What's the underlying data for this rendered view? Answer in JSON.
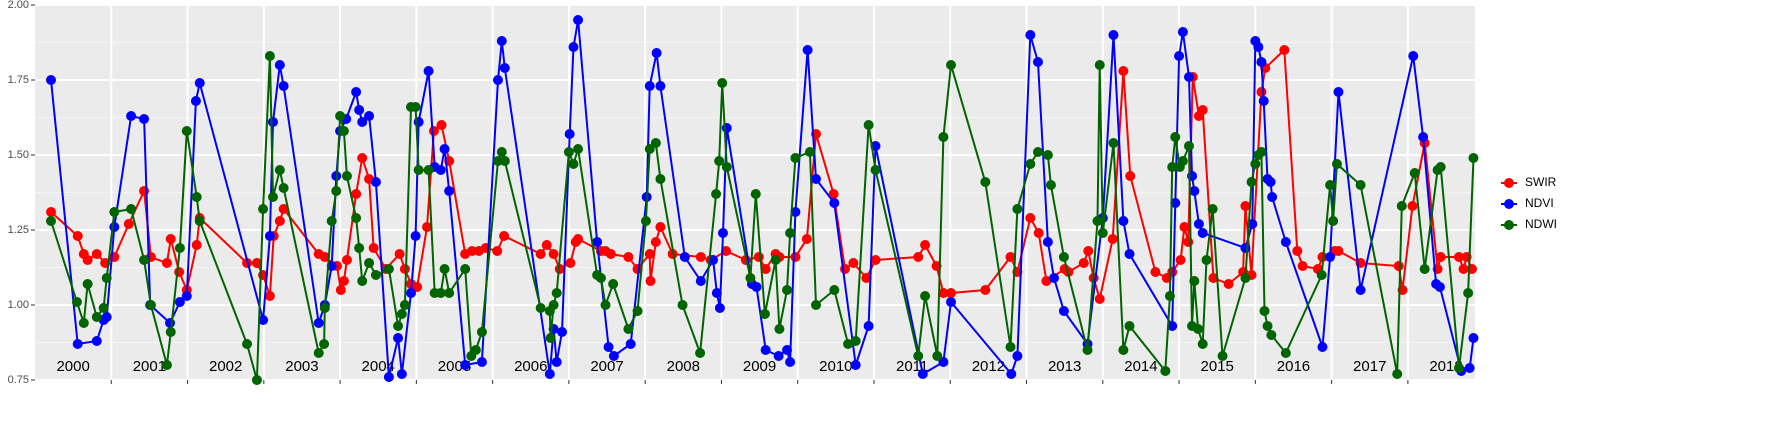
{
  "chart_data": {
    "type": "line",
    "xlim": [
      2000,
      2018.88
    ],
    "xticks": [
      2001,
      2002,
      2003,
      2004,
      2005,
      2006,
      2007,
      2008,
      2009,
      2010,
      2011,
      2012,
      2013,
      2014,
      2015,
      2016,
      2017,
      2018
    ],
    "ylim": [
      0.75,
      2.0
    ],
    "yticks": [
      0.75,
      {
        "value": 1.0,
        "label": "1.00"
      },
      1.25,
      {
        "value": 1.5,
        "label": "1.50"
      },
      1.75,
      {
        "value": 2.0,
        "label": "2.00"
      }
    ],
    "grid": true,
    "legend": "right",
    "year_labels": {
      "labels": [
        "2000",
        "2001",
        "2002",
        "2003",
        "2004",
        "2005",
        "2006",
        "2007",
        "2008",
        "2009",
        "2010",
        "2011",
        "2012",
        "2013",
        "2014",
        "2015",
        "2016",
        "2017",
        "2018"
      ],
      "x": [
        2000.5,
        2001.5,
        2002.5,
        2003.5,
        2004.5,
        2005.5,
        2006.5,
        2007.5,
        2008.5,
        2009.5,
        2010.5,
        2011.5,
        2012.5,
        2013.5,
        2014.5,
        2015.5,
        2016.5,
        2017.5,
        2018.5
      ]
    },
    "series": [
      {
        "name": "SWIR",
        "color": "#ff0000",
        "x": [
          2000.21,
          2000.56,
          2000.64,
          2000.69,
          2000.81,
          2000.92,
          2001.04,
          2001.23,
          2001.43,
          2001.52,
          2001.73,
          2001.78,
          2001.89,
          2001.99,
          2002.12,
          2002.16,
          2002.78,
          2002.91,
          2002.99,
          2003.08,
          2003.13,
          2003.21,
          2003.26,
          2003.72,
          2003.8,
          2003.96,
          2004.01,
          2004.05,
          2004.09,
          2004.21,
          2004.29,
          2004.38,
          2004.44,
          2004.6,
          2004.78,
          2004.85,
          2004.93,
          2005.01,
          2005.14,
          2005.23,
          2005.33,
          2005.43,
          2005.64,
          2005.73,
          2005.82,
          2005.91,
          2006.06,
          2006.15,
          2006.63,
          2006.71,
          2006.8,
          2006.88,
          2007.02,
          2007.09,
          2007.12,
          2007.42,
          2007.48,
          2007.55,
          2007.78,
          2007.9,
          2008.06,
          2008.07,
          2008.14,
          2008.2,
          2008.36,
          2008.73,
          2008.86,
          2009.06,
          2009.32,
          2009.49,
          2009.58,
          2009.71,
          2009.76,
          2009.97,
          2010.12,
          2010.24,
          2010.47,
          2010.62,
          2010.73,
          2010.9,
          2011.02,
          2011.58,
          2011.67,
          2011.82,
          2011.91,
          2012.01,
          2012.46,
          2012.79,
          2012.88,
          2013.05,
          2013.16,
          2013.26,
          2013.5,
          2013.55,
          2013.75,
          2013.81,
          2013.88,
          2013.96,
          2014.13,
          2014.27,
          2014.36,
          2014.69,
          2014.84,
          2014.91,
          2015.02,
          2015.07,
          2015.12,
          2015.18,
          2015.26,
          2015.31,
          2015.45,
          2015.65,
          2015.84,
          2015.87,
          2015.95,
          2016.08,
          2016.13,
          2016.38,
          2016.55,
          2016.62,
          2016.82,
          2016.88,
          2017.04,
          2017.09,
          2017.38,
          2017.88,
          2017.93,
          2018.06,
          2018.22,
          2018.39,
          2018.43,
          2018.67,
          2018.73,
          2018.77,
          2018.84
        ],
        "values": [
          1.31,
          1.23,
          1.17,
          1.15,
          1.17,
          1.14,
          1.16,
          1.27,
          1.38,
          1.16,
          1.14,
          1.22,
          1.11,
          1.05,
          1.2,
          1.29,
          1.14,
          1.14,
          1.1,
          1.03,
          1.23,
          1.28,
          1.32,
          1.17,
          1.16,
          1.13,
          1.05,
          1.08,
          1.15,
          1.37,
          1.49,
          1.42,
          1.19,
          1.12,
          1.17,
          1.12,
          1.07,
          1.06,
          1.26,
          1.58,
          1.6,
          1.48,
          1.17,
          1.18,
          1.18,
          1.19,
          1.18,
          1.23,
          1.17,
          1.2,
          1.17,
          1.12,
          1.14,
          1.21,
          1.22,
          1.18,
          1.18,
          1.17,
          1.16,
          1.12,
          1.17,
          1.08,
          1.21,
          1.26,
          1.17,
          1.16,
          1.15,
          1.18,
          1.15,
          1.16,
          1.12,
          1.17,
          1.16,
          1.16,
          1.22,
          1.57,
          1.37,
          1.12,
          1.14,
          1.09,
          1.15,
          1.16,
          1.2,
          1.13,
          1.04,
          1.04,
          1.05,
          1.16,
          1.11,
          1.29,
          1.24,
          1.08,
          1.12,
          1.11,
          1.14,
          1.18,
          1.09,
          1.02,
          1.22,
          1.78,
          1.43,
          1.11,
          1.09,
          1.11,
          1.15,
          1.26,
          1.21,
          1.76,
          1.63,
          1.65,
          1.09,
          1.07,
          1.11,
          1.33,
          1.1,
          1.71,
          1.79,
          1.85,
          1.18,
          1.13,
          1.12,
          1.16,
          1.18,
          1.18,
          1.14,
          1.13,
          1.05,
          1.33,
          1.54,
          1.12,
          1.16,
          1.16,
          1.12,
          1.16,
          1.12
        ]
      },
      {
        "name": "NDVI",
        "color": "#0000ff",
        "x": [
          2000.21,
          2000.56,
          2000.81,
          2000.9,
          2000.94,
          2001.04,
          2001.26,
          2001.43,
          2001.51,
          2001.77,
          2001.9,
          2001.99,
          2002.11,
          2002.16,
          2002.99,
          2003.08,
          2003.12,
          2003.21,
          2003.26,
          2003.72,
          2003.8,
          2003.89,
          2003.95,
          2004.0,
          2004.08,
          2004.21,
          2004.25,
          2004.29,
          2004.38,
          2004.47,
          2004.64,
          2004.76,
          2004.81,
          2004.93,
          2004.99,
          2005.03,
          2005.16,
          2005.24,
          2005.32,
          2005.37,
          2005.43,
          2005.64,
          2005.86,
          2006.07,
          2006.12,
          2006.16,
          2006.75,
          2006.8,
          2006.84,
          2006.91,
          2007.01,
          2007.06,
          2007.12,
          2007.37,
          2007.52,
          2007.59,
          2007.81,
          2008.02,
          2008.06,
          2008.15,
          2008.2,
          2008.52,
          2008.73,
          2008.89,
          2008.94,
          2008.98,
          2009.02,
          2009.07,
          2009.4,
          2009.46,
          2009.58,
          2009.75,
          2009.86,
          2009.9,
          2009.97,
          2010.13,
          2010.24,
          2010.48,
          2010.76,
          2010.93,
          2011.02,
          2011.64,
          2011.91,
          2012.01,
          2012.8,
          2012.88,
          2013.05,
          2013.15,
          2013.28,
          2013.36,
          2013.49,
          2013.8,
          2014.0,
          2014.14,
          2014.27,
          2014.35,
          2014.91,
          2014.95,
          2015.0,
          2015.05,
          2015.13,
          2015.17,
          2015.2,
          2015.26,
          2015.31,
          2015.87,
          2015.96,
          2016.0,
          2016.04,
          2016.08,
          2016.11,
          2016.16,
          2016.2,
          2016.22,
          2016.4,
          2016.88,
          2016.98,
          2017.09,
          2017.38,
          2018.07,
          2018.2,
          2018.37,
          2018.42,
          2018.7,
          2018.81,
          2018.86
        ],
        "values": [
          1.75,
          0.87,
          0.88,
          0.95,
          0.96,
          1.26,
          1.63,
          1.62,
          1.0,
          0.94,
          1.01,
          1.03,
          1.68,
          1.74,
          0.95,
          1.23,
          1.61,
          1.8,
          1.73,
          0.94,
          1.0,
          1.13,
          1.43,
          1.58,
          1.62,
          1.71,
          1.65,
          1.61,
          1.63,
          1.41,
          0.76,
          0.89,
          0.77,
          1.04,
          1.23,
          1.61,
          1.78,
          1.46,
          1.45,
          1.52,
          1.38,
          0.8,
          0.81,
          1.75,
          1.88,
          1.79,
          0.77,
          0.92,
          0.81,
          0.91,
          1.57,
          1.86,
          1.95,
          1.21,
          0.86,
          0.83,
          0.87,
          1.36,
          1.73,
          1.84,
          1.73,
          1.16,
          1.08,
          1.15,
          1.04,
          0.99,
          1.24,
          1.59,
          1.07,
          1.06,
          0.85,
          0.83,
          0.85,
          0.81,
          1.31,
          1.85,
          1.42,
          1.34,
          0.8,
          0.93,
          1.53,
          0.77,
          0.81,
          1.01,
          0.77,
          0.83,
          1.9,
          1.81,
          1.21,
          1.09,
          0.98,
          0.87,
          1.29,
          1.9,
          1.28,
          1.17,
          0.93,
          1.34,
          1.83,
          1.91,
          1.76,
          1.43,
          1.38,
          1.27,
          1.24,
          1.19,
          1.27,
          1.88,
          1.86,
          1.81,
          1.68,
          1.42,
          1.41,
          1.36,
          1.21,
          0.86,
          1.16,
          1.71,
          1.05,
          1.83,
          1.56,
          1.07,
          1.06,
          0.78,
          0.79,
          0.89
        ]
      },
      {
        "name": "NDWI",
        "color": "#006400",
        "x": [
          2000.21,
          2000.55,
          2000.64,
          2000.69,
          2000.81,
          2000.9,
          2000.94,
          2001.04,
          2001.26,
          2001.43,
          2001.52,
          2001.73,
          2001.78,
          2001.9,
          2001.99,
          2002.12,
          2002.16,
          2002.78,
          2002.91,
          2002.99,
          2003.08,
          2003.12,
          2003.21,
          2003.26,
          2003.72,
          2003.79,
          2003.8,
          2003.89,
          2003.95,
          2004.0,
          2004.05,
          2004.09,
          2004.21,
          2004.25,
          2004.29,
          2004.38,
          2004.47,
          2004.64,
          2004.76,
          2004.81,
          2004.85,
          2004.93,
          2004.99,
          2005.03,
          2005.16,
          2005.24,
          2005.32,
          2005.37,
          2005.43,
          2005.64,
          2005.72,
          2005.78,
          2005.86,
          2006.07,
          2006.12,
          2006.16,
          2006.63,
          2006.75,
          2006.76,
          2006.8,
          2006.84,
          2007.0,
          2007.06,
          2007.12,
          2007.37,
          2007.42,
          2007.48,
          2007.58,
          2007.78,
          2007.9,
          2008.01,
          2008.06,
          2008.14,
          2008.2,
          2008.49,
          2008.72,
          2008.93,
          2008.97,
          2009.01,
          2009.07,
          2009.38,
          2009.45,
          2009.57,
          2009.71,
          2009.76,
          2009.86,
          2009.9,
          2009.97,
          2010.16,
          2010.24,
          2010.48,
          2010.66,
          2010.76,
          2010.93,
          2011.02,
          2011.58,
          2011.67,
          2011.83,
          2011.91,
          2012.01,
          2012.46,
          2012.79,
          2012.88,
          2013.05,
          2013.15,
          2013.28,
          2013.32,
          2013.49,
          2013.8,
          2013.93,
          2013.96,
          2014.0,
          2014.14,
          2014.27,
          2014.35,
          2014.82,
          2014.88,
          2014.91,
          2014.95,
          2015.01,
          2015.05,
          2015.13,
          2015.17,
          2015.2,
          2015.25,
          2015.31,
          2015.36,
          2015.44,
          2015.57,
          2015.87,
          2015.95,
          2016.0,
          2016.04,
          2016.08,
          2016.12,
          2016.16,
          2016.21,
          2016.4,
          2016.87,
          2016.98,
          2017.02,
          2017.07,
          2017.38,
          2017.86,
          2017.92,
          2018.09,
          2018.22,
          2018.39,
          2018.43,
          2018.67,
          2018.79,
          2018.86
        ],
        "values": [
          1.28,
          1.01,
          0.94,
          1.07,
          0.96,
          0.99,
          1.09,
          1.31,
          1.32,
          1.15,
          1.0,
          0.8,
          0.91,
          1.19,
          1.58,
          1.36,
          1.28,
          0.87,
          0.75,
          1.32,
          1.83,
          1.36,
          1.45,
          1.39,
          0.84,
          0.87,
          0.99,
          1.28,
          1.38,
          1.63,
          1.58,
          1.43,
          1.29,
          1.19,
          1.08,
          1.14,
          1.1,
          1.12,
          0.93,
          0.97,
          1.0,
          1.66,
          1.66,
          1.45,
          1.45,
          1.04,
          1.04,
          1.12,
          1.04,
          1.12,
          0.83,
          0.85,
          0.91,
          1.48,
          1.51,
          1.48,
          0.99,
          0.98,
          0.89,
          1.0,
          1.04,
          1.51,
          1.47,
          1.52,
          1.1,
          1.09,
          1.0,
          1.07,
          0.92,
          0.98,
          1.28,
          1.52,
          1.54,
          1.42,
          1.0,
          0.84,
          1.37,
          1.48,
          1.74,
          1.46,
          1.09,
          1.37,
          0.97,
          1.15,
          0.92,
          1.05,
          1.24,
          1.49,
          1.51,
          1.0,
          1.05,
          0.87,
          0.88,
          1.6,
          1.45,
          0.83,
          1.03,
          0.83,
          1.56,
          1.8,
          1.41,
          0.86,
          1.32,
          1.47,
          1.51,
          1.5,
          1.4,
          1.16,
          0.85,
          1.28,
          1.8,
          1.24,
          1.54,
          0.85,
          0.93,
          0.78,
          1.03,
          1.46,
          1.56,
          1.46,
          1.48,
          1.53,
          0.93,
          1.08,
          0.92,
          0.87,
          1.15,
          1.32,
          0.83,
          1.09,
          1.41,
          1.47,
          1.5,
          1.51,
          0.98,
          0.93,
          0.9,
          0.84,
          1.1,
          1.4,
          1.28,
          1.47,
          1.4,
          0.77,
          1.33,
          1.44,
          1.12,
          1.45,
          1.46,
          0.79,
          1.04,
          1.49
        ]
      }
    ]
  }
}
